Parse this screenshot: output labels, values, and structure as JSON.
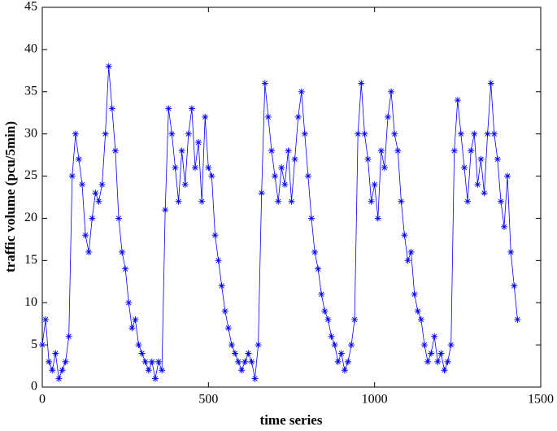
{
  "chart_data": {
    "type": "line",
    "xlabel": "time series",
    "ylabel": "traffic volume (pcu/5min)",
    "color": "#0000ff",
    "marker": "asterisk",
    "grid": false,
    "x": [
      0,
      10,
      20,
      30,
      40,
      50,
      60,
      70,
      80,
      90,
      100,
      110,
      120,
      130,
      140,
      150,
      160,
      170,
      180,
      190,
      200,
      210,
      220,
      230,
      240,
      250,
      260,
      270,
      280,
      290,
      300,
      310,
      320,
      330,
      340,
      350,
      360,
      370,
      380,
      390,
      400,
      410,
      420,
      430,
      440,
      450,
      460,
      470,
      480,
      490,
      500,
      510,
      520,
      530,
      540,
      550,
      560,
      570,
      580,
      590,
      600,
      610,
      620,
      630,
      640,
      650,
      660,
      670,
      680,
      690,
      700,
      710,
      720,
      730,
      740,
      750,
      760,
      770,
      780,
      790,
      800,
      810,
      820,
      830,
      840,
      850,
      860,
      870,
      880,
      890,
      900,
      910,
      920,
      930,
      940,
      950,
      960,
      970,
      980,
      990,
      1000,
      1010,
      1020,
      1030,
      1040,
      1050,
      1060,
      1070,
      1080,
      1090,
      1100,
      1110,
      1120,
      1130,
      1140,
      1150,
      1160,
      1170,
      1180,
      1190,
      1200,
      1210,
      1220,
      1230,
      1240,
      1250,
      1260,
      1270,
      1280,
      1290,
      1300,
      1310,
      1320,
      1330,
      1340,
      1350,
      1360,
      1370,
      1380,
      1390,
      1400,
      1410,
      1420,
      1430
    ],
    "values": [
      5,
      8,
      3,
      2,
      4,
      1,
      2,
      3,
      6,
      25,
      30,
      27,
      24,
      18,
      16,
      20,
      23,
      22,
      24,
      30,
      38,
      33,
      28,
      20,
      16,
      14,
      10,
      7,
      8,
      5,
      4,
      3,
      2,
      3,
      1,
      3,
      2,
      21,
      33,
      30,
      26,
      22,
      28,
      24,
      30,
      33,
      26,
      29,
      22,
      32,
      26,
      25,
      18,
      15,
      12,
      9,
      7,
      5,
      4,
      3,
      2,
      3,
      4,
      3,
      1,
      5,
      23,
      36,
      32,
      28,
      25,
      22,
      26,
      24,
      28,
      22,
      27,
      32,
      35,
      30,
      25,
      20,
      16,
      14,
      11,
      9,
      8,
      6,
      5,
      3,
      4,
      2,
      3,
      5,
      8,
      30,
      36,
      30,
      27,
      22,
      24,
      20,
      28,
      26,
      32,
      35,
      30,
      28,
      22,
      18,
      15,
      16,
      11,
      9,
      8,
      5,
      3,
      4,
      6,
      3,
      4,
      2,
      3,
      5,
      28,
      34,
      30,
      26,
      22,
      28,
      30,
      24,
      27,
      23,
      30,
      36,
      30,
      27,
      22,
      19,
      25,
      16,
      12,
      8
    ],
    "xlim": [
      0,
      1500
    ],
    "xticks": [
      0,
      500,
      1000,
      1500
    ],
    "ylim": [
      0,
      45
    ],
    "yticks": [
      0,
      5,
      10,
      15,
      20,
      25,
      30,
      35,
      40,
      45
    ]
  }
}
